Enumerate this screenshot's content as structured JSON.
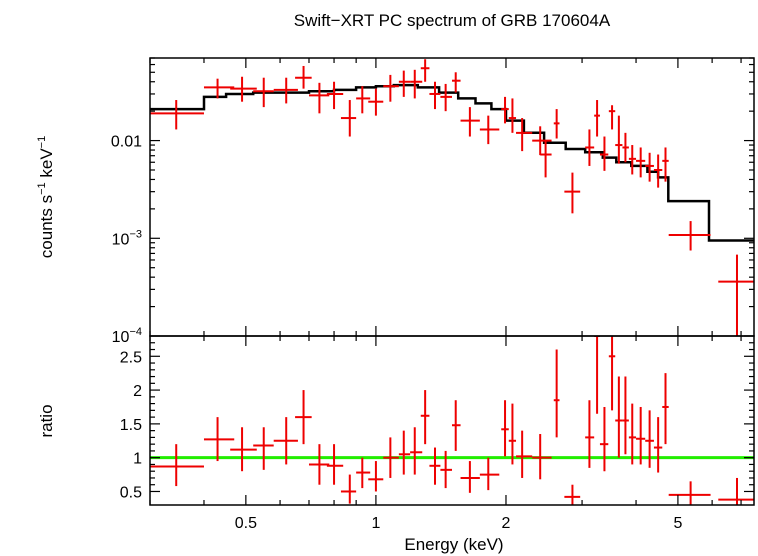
{
  "chart_data": [
    {
      "type": "scatter",
      "title": "Swift−XRT PC spectrum of GRB 170604A",
      "ylabel_parts": [
        "counts s",
        "−1",
        " keV",
        "−1"
      ],
      "xscale": "log",
      "yscale": "log",
      "xlim": [
        0.3,
        7.5
      ],
      "ylim": [
        0.0001,
        0.07
      ],
      "yticks": [
        {
          "value": 0.01,
          "base": "0.01",
          "exp": ""
        },
        {
          "value": 0.001,
          "base": "10",
          "exp": "−3"
        },
        {
          "value": 0.0001,
          "base": "10",
          "exp": "−4"
        }
      ],
      "colors": {
        "data": "#ee0000",
        "model": "#000000"
      },
      "model_steps": [
        [
          0.3,
          0.4,
          0.021
        ],
        [
          0.4,
          0.45,
          0.028
        ],
        [
          0.45,
          0.52,
          0.03
        ],
        [
          0.52,
          0.6,
          0.031
        ],
        [
          0.6,
          0.7,
          0.031
        ],
        [
          0.7,
          0.8,
          0.032
        ],
        [
          0.8,
          0.9,
          0.033
        ],
        [
          0.9,
          1.0,
          0.035
        ],
        [
          1.0,
          1.1,
          0.036
        ],
        [
          1.1,
          1.25,
          0.037
        ],
        [
          1.25,
          1.4,
          0.035
        ],
        [
          1.4,
          1.55,
          0.031
        ],
        [
          1.55,
          1.7,
          0.027
        ],
        [
          1.7,
          1.85,
          0.024
        ],
        [
          1.85,
          2.0,
          0.021
        ],
        [
          2.0,
          2.2,
          0.016
        ],
        [
          2.2,
          2.45,
          0.012
        ],
        [
          2.45,
          2.75,
          0.0095
        ],
        [
          2.75,
          3.05,
          0.0082
        ],
        [
          3.05,
          3.35,
          0.0076
        ],
        [
          3.35,
          3.6,
          0.0067
        ],
        [
          3.6,
          3.9,
          0.006
        ],
        [
          3.9,
          4.25,
          0.0055
        ],
        [
          4.25,
          4.5,
          0.0048
        ],
        [
          4.5,
          4.75,
          0.0042
        ],
        [
          4.75,
          5.9,
          0.0024
        ],
        [
          5.9,
          7.5,
          0.00095
        ]
      ],
      "points": [
        {
          "x": 0.345,
          "xlo": 0.3,
          "xhi": 0.4,
          "y": 0.019,
          "ylo": 0.013,
          "yhi": 0.026
        },
        {
          "x": 0.43,
          "xlo": 0.4,
          "xhi": 0.47,
          "y": 0.035,
          "ylo": 0.027,
          "yhi": 0.043
        },
        {
          "x": 0.49,
          "xlo": 0.46,
          "xhi": 0.53,
          "y": 0.034,
          "ylo": 0.025,
          "yhi": 0.045
        },
        {
          "x": 0.55,
          "xlo": 0.52,
          "xhi": 0.58,
          "y": 0.032,
          "ylo": 0.022,
          "yhi": 0.044
        },
        {
          "x": 0.62,
          "xlo": 0.58,
          "xhi": 0.66,
          "y": 0.033,
          "ylo": 0.024,
          "yhi": 0.044
        },
        {
          "x": 0.68,
          "xlo": 0.65,
          "xhi": 0.71,
          "y": 0.044,
          "ylo": 0.034,
          "yhi": 0.058
        },
        {
          "x": 0.74,
          "xlo": 0.7,
          "xhi": 0.78,
          "y": 0.029,
          "ylo": 0.019,
          "yhi": 0.039
        },
        {
          "x": 0.8,
          "xlo": 0.77,
          "xhi": 0.84,
          "y": 0.03,
          "ylo": 0.021,
          "yhi": 0.04
        },
        {
          "x": 0.87,
          "xlo": 0.83,
          "xhi": 0.9,
          "y": 0.017,
          "ylo": 0.011,
          "yhi": 0.026
        },
        {
          "x": 0.93,
          "xlo": 0.9,
          "xhi": 0.97,
          "y": 0.027,
          "ylo": 0.019,
          "yhi": 0.036
        },
        {
          "x": 1.0,
          "xlo": 0.96,
          "xhi": 1.04,
          "y": 0.025,
          "ylo": 0.018,
          "yhi": 0.034
        },
        {
          "x": 1.08,
          "xlo": 1.04,
          "xhi": 1.13,
          "y": 0.036,
          "ylo": 0.025,
          "yhi": 0.047
        },
        {
          "x": 1.16,
          "xlo": 1.13,
          "xhi": 1.2,
          "y": 0.04,
          "ylo": 0.028,
          "yhi": 0.052
        },
        {
          "x": 1.23,
          "xlo": 1.2,
          "xhi": 1.28,
          "y": 0.04,
          "ylo": 0.027,
          "yhi": 0.053
        },
        {
          "x": 1.3,
          "xlo": 1.27,
          "xhi": 1.33,
          "y": 0.055,
          "ylo": 0.04,
          "yhi": 0.068
        },
        {
          "x": 1.37,
          "xlo": 1.33,
          "xhi": 1.41,
          "y": 0.03,
          "ylo": 0.021,
          "yhi": 0.04
        },
        {
          "x": 1.45,
          "xlo": 1.41,
          "xhi": 1.5,
          "y": 0.028,
          "ylo": 0.02,
          "yhi": 0.038
        },
        {
          "x": 1.53,
          "xlo": 1.5,
          "xhi": 1.57,
          "y": 0.041,
          "ylo": 0.031,
          "yhi": 0.05
        },
        {
          "x": 1.65,
          "xlo": 1.57,
          "xhi": 1.74,
          "y": 0.016,
          "ylo": 0.011,
          "yhi": 0.022
        },
        {
          "x": 1.82,
          "xlo": 1.74,
          "xhi": 1.93,
          "y": 0.013,
          "ylo": 0.0092,
          "yhi": 0.018
        },
        {
          "x": 1.99,
          "xlo": 1.95,
          "xhi": 2.03,
          "y": 0.021,
          "ylo": 0.015,
          "yhi": 0.028
        },
        {
          "x": 2.07,
          "xlo": 2.03,
          "xhi": 2.11,
          "y": 0.017,
          "ylo": 0.012,
          "yhi": 0.027
        },
        {
          "x": 2.18,
          "xlo": 2.11,
          "xhi": 2.3,
          "y": 0.012,
          "ylo": 0.0078,
          "yhi": 0.017
        },
        {
          "x": 2.4,
          "xlo": 2.3,
          "xhi": 2.55,
          "y": 0.01,
          "ylo": 0.0071,
          "yhi": 0.014
        },
        {
          "x": 2.62,
          "xlo": 2.58,
          "xhi": 2.66,
          "y": 0.015,
          "ylo": 0.0105,
          "yhi": 0.021
        },
        {
          "x": 2.47,
          "xlo": 2.4,
          "xhi": 2.55,
          "y": 0.0072,
          "ylo": 0.0042,
          "yhi": 0.0098
        },
        {
          "x": 2.85,
          "xlo": 2.73,
          "xhi": 2.97,
          "y": 0.003,
          "ylo": 0.0018,
          "yhi": 0.0047
        },
        {
          "x": 3.12,
          "xlo": 3.05,
          "xhi": 3.2,
          "y": 0.0085,
          "ylo": 0.0055,
          "yhi": 0.013
        },
        {
          "x": 3.25,
          "xlo": 3.2,
          "xhi": 3.3,
          "y": 0.018,
          "ylo": 0.011,
          "yhi": 0.026
        },
        {
          "x": 3.38,
          "xlo": 3.3,
          "xhi": 3.45,
          "y": 0.0072,
          "ylo": 0.0049,
          "yhi": 0.011
        },
        {
          "x": 3.52,
          "xlo": 3.46,
          "xhi": 3.58,
          "y": 0.02,
          "ylo": 0.013,
          "yhi": 0.023
        },
        {
          "x": 3.65,
          "xlo": 3.58,
          "xhi": 3.72,
          "y": 0.009,
          "ylo": 0.0058,
          "yhi": 0.018
        },
        {
          "x": 3.78,
          "xlo": 3.72,
          "xhi": 3.85,
          "y": 0.0085,
          "ylo": 0.006,
          "yhi": 0.012
        },
        {
          "x": 3.92,
          "xlo": 3.85,
          "xhi": 4.0,
          "y": 0.0065,
          "ylo": 0.0045,
          "yhi": 0.009
        },
        {
          "x": 4.1,
          "xlo": 4.0,
          "xhi": 4.2,
          "y": 0.0062,
          "ylo": 0.0042,
          "yhi": 0.0085
        },
        {
          "x": 4.3,
          "xlo": 4.2,
          "xhi": 4.4,
          "y": 0.0055,
          "ylo": 0.0038,
          "yhi": 0.0075
        },
        {
          "x": 4.5,
          "xlo": 4.4,
          "xhi": 4.6,
          "y": 0.005,
          "ylo": 0.0033,
          "yhi": 0.0072
        },
        {
          "x": 4.68,
          "xlo": 4.6,
          "xhi": 4.76,
          "y": 0.0062,
          "ylo": 0.0038,
          "yhi": 0.0085
        },
        {
          "x": 5.35,
          "xlo": 4.76,
          "xhi": 5.95,
          "y": 0.00108,
          "ylo": 0.00075,
          "yhi": 0.0015
        },
        {
          "x": 6.85,
          "xlo": 6.2,
          "xhi": 7.5,
          "y": 0.00036,
          "ylo": 0.0001,
          "yhi": 0.00068
        }
      ]
    },
    {
      "type": "scatter",
      "ylabel": "ratio",
      "xlabel": "Energy (keV)",
      "xscale": "log",
      "ylim": [
        0.3,
        2.8
      ],
      "yticks": [
        "0.5",
        "1",
        "1.5",
        "2",
        "2.5"
      ],
      "xticks": [
        "0.5",
        "1",
        "2",
        "5"
      ],
      "reference": 1,
      "colors": {
        "data": "#ee0000",
        "reference": "#22ee00"
      },
      "points": [
        {
          "x": 0.345,
          "xlo": 0.3,
          "xhi": 0.4,
          "y": 0.87,
          "ylo": 0.58,
          "yhi": 1.2
        },
        {
          "x": 0.43,
          "xlo": 0.4,
          "xhi": 0.47,
          "y": 1.27,
          "ylo": 0.95,
          "yhi": 1.6
        },
        {
          "x": 0.49,
          "xlo": 0.46,
          "xhi": 0.53,
          "y": 1.12,
          "ylo": 0.8,
          "yhi": 1.45
        },
        {
          "x": 0.55,
          "xlo": 0.52,
          "xhi": 0.58,
          "y": 1.18,
          "ylo": 0.82,
          "yhi": 1.45
        },
        {
          "x": 0.62,
          "xlo": 0.58,
          "xhi": 0.66,
          "y": 1.25,
          "ylo": 0.9,
          "yhi": 1.6
        },
        {
          "x": 0.68,
          "xlo": 0.65,
          "xhi": 0.71,
          "y": 1.6,
          "ylo": 1.2,
          "yhi": 2.0
        },
        {
          "x": 0.74,
          "xlo": 0.7,
          "xhi": 0.78,
          "y": 0.9,
          "ylo": 0.6,
          "yhi": 1.2
        },
        {
          "x": 0.8,
          "xlo": 0.77,
          "xhi": 0.84,
          "y": 0.88,
          "ylo": 0.6,
          "yhi": 1.2
        },
        {
          "x": 0.87,
          "xlo": 0.83,
          "xhi": 0.9,
          "y": 0.5,
          "ylo": 0.32,
          "yhi": 0.75
        },
        {
          "x": 0.93,
          "xlo": 0.9,
          "xhi": 0.97,
          "y": 0.78,
          "ylo": 0.55,
          "yhi": 1.0
        },
        {
          "x": 1.0,
          "xlo": 0.96,
          "xhi": 1.04,
          "y": 0.68,
          "ylo": 0.5,
          "yhi": 0.95
        },
        {
          "x": 1.08,
          "xlo": 1.04,
          "xhi": 1.13,
          "y": 1.0,
          "ylo": 0.7,
          "yhi": 1.3
        },
        {
          "x": 1.16,
          "xlo": 1.13,
          "xhi": 1.2,
          "y": 1.05,
          "ylo": 0.75,
          "yhi": 1.4
        },
        {
          "x": 1.23,
          "xlo": 1.2,
          "xhi": 1.28,
          "y": 1.08,
          "ylo": 0.75,
          "yhi": 1.45
        },
        {
          "x": 1.3,
          "xlo": 1.27,
          "xhi": 1.33,
          "y": 1.62,
          "ylo": 1.2,
          "yhi": 2.0
        },
        {
          "x": 1.37,
          "xlo": 1.33,
          "xhi": 1.41,
          "y": 0.88,
          "ylo": 0.6,
          "yhi": 1.15
        },
        {
          "x": 1.45,
          "xlo": 1.41,
          "xhi": 1.5,
          "y": 0.82,
          "ylo": 0.55,
          "yhi": 1.1
        },
        {
          "x": 1.53,
          "xlo": 1.5,
          "xhi": 1.57,
          "y": 1.48,
          "ylo": 1.1,
          "yhi": 1.85
        },
        {
          "x": 1.65,
          "xlo": 1.57,
          "xhi": 1.74,
          "y": 0.7,
          "ylo": 0.48,
          "yhi": 0.95
        },
        {
          "x": 1.82,
          "xlo": 1.74,
          "xhi": 1.93,
          "y": 0.75,
          "ylo": 0.52,
          "yhi": 1.0
        },
        {
          "x": 1.99,
          "xlo": 1.95,
          "xhi": 2.03,
          "y": 1.42,
          "ylo": 1.02,
          "yhi": 1.85
        },
        {
          "x": 2.07,
          "xlo": 2.03,
          "xhi": 2.11,
          "y": 1.25,
          "ylo": 0.9,
          "yhi": 1.8
        },
        {
          "x": 2.18,
          "xlo": 2.11,
          "xhi": 2.3,
          "y": 1.02,
          "ylo": 0.7,
          "yhi": 1.4
        },
        {
          "x": 2.4,
          "xlo": 2.3,
          "xhi": 2.55,
          "y": 1.0,
          "ylo": 0.68,
          "yhi": 1.35
        },
        {
          "x": 2.62,
          "xlo": 2.58,
          "xhi": 2.66,
          "y": 1.85,
          "ylo": 1.3,
          "yhi": 2.6
        },
        {
          "x": 2.85,
          "xlo": 2.73,
          "xhi": 2.97,
          "y": 0.42,
          "ylo": 0.3,
          "yhi": 0.6
        },
        {
          "x": 3.12,
          "xlo": 3.05,
          "xhi": 3.2,
          "y": 1.3,
          "ylo": 0.85,
          "yhi": 1.85
        },
        {
          "x": 3.25,
          "xlo": 3.2,
          "xhi": 3.3,
          "y": 2.8,
          "ylo": 1.65,
          "yhi": 2.8
        },
        {
          "x": 3.38,
          "xlo": 3.3,
          "xhi": 3.45,
          "y": 1.2,
          "ylo": 0.8,
          "yhi": 1.75
        },
        {
          "x": 3.52,
          "xlo": 3.46,
          "xhi": 3.58,
          "y": 2.5,
          "ylo": 1.7,
          "yhi": 2.8
        },
        {
          "x": 3.65,
          "xlo": 3.58,
          "xhi": 3.72,
          "y": 1.55,
          "ylo": 1.0,
          "yhi": 2.2
        },
        {
          "x": 3.78,
          "xlo": 3.72,
          "xhi": 3.85,
          "y": 1.55,
          "ylo": 1.05,
          "yhi": 2.2
        },
        {
          "x": 3.92,
          "xlo": 3.85,
          "xhi": 4.0,
          "y": 1.3,
          "ylo": 0.9,
          "yhi": 1.8
        },
        {
          "x": 4.1,
          "xlo": 4.0,
          "xhi": 4.2,
          "y": 1.28,
          "ylo": 0.9,
          "yhi": 1.75
        },
        {
          "x": 4.3,
          "xlo": 4.2,
          "xhi": 4.4,
          "y": 1.25,
          "ylo": 0.85,
          "yhi": 1.7
        },
        {
          "x": 4.5,
          "xlo": 4.4,
          "xhi": 4.6,
          "y": 1.15,
          "ylo": 0.78,
          "yhi": 1.6
        },
        {
          "x": 4.68,
          "xlo": 4.6,
          "xhi": 4.76,
          "y": 1.75,
          "ylo": 1.2,
          "yhi": 2.25
        },
        {
          "x": 5.35,
          "xlo": 4.76,
          "xhi": 5.95,
          "y": 0.45,
          "ylo": 0.3,
          "yhi": 0.65
        },
        {
          "x": 6.85,
          "xlo": 6.2,
          "xhi": 7.5,
          "y": 0.38,
          "ylo": 0.3,
          "yhi": 0.7
        }
      ]
    }
  ]
}
